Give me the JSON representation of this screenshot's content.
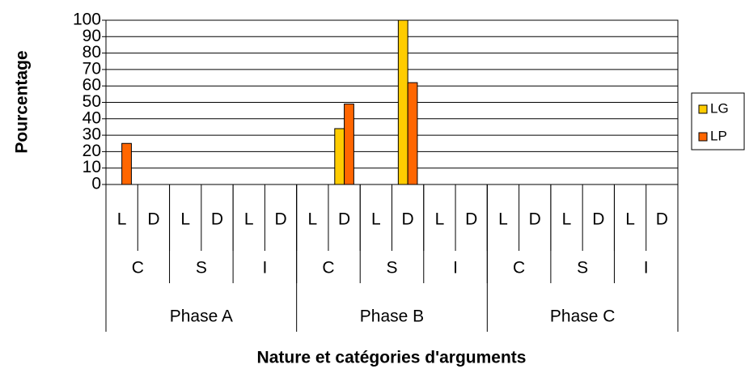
{
  "chart_data": {
    "type": "bar",
    "ylabel": "Pourcentage",
    "xlabel": "Nature et catégories d'arguments",
    "categories": [
      "L",
      "D",
      "L",
      "D",
      "L",
      "D",
      "L",
      "D",
      "L",
      "D",
      "L",
      "D",
      "L",
      "D",
      "L",
      "D",
      "L",
      "D"
    ],
    "subgroups": [
      "C",
      "S",
      "I",
      "C",
      "S",
      "I",
      "C",
      "S",
      "I"
    ],
    "groups": [
      "Phase A",
      "Phase B",
      "Phase C"
    ],
    "series": [
      {
        "name": "LG",
        "color": "#ffcc00",
        "values": [
          0,
          0,
          0,
          0,
          0,
          0,
          0,
          34,
          0,
          100,
          0,
          0,
          0,
          0,
          0,
          0,
          0,
          0
        ]
      },
      {
        "name": "LP",
        "color": "#ff6600",
        "values": [
          25,
          0,
          0,
          0,
          0,
          0,
          0,
          49,
          0,
          62,
          0,
          0,
          0,
          0,
          0,
          0,
          0,
          0
        ]
      }
    ],
    "ylim": [
      0,
      100
    ],
    "yticks": [
      0,
      10,
      20,
      30,
      40,
      50,
      60,
      70,
      80,
      90,
      100
    ],
    "grid": true
  }
}
